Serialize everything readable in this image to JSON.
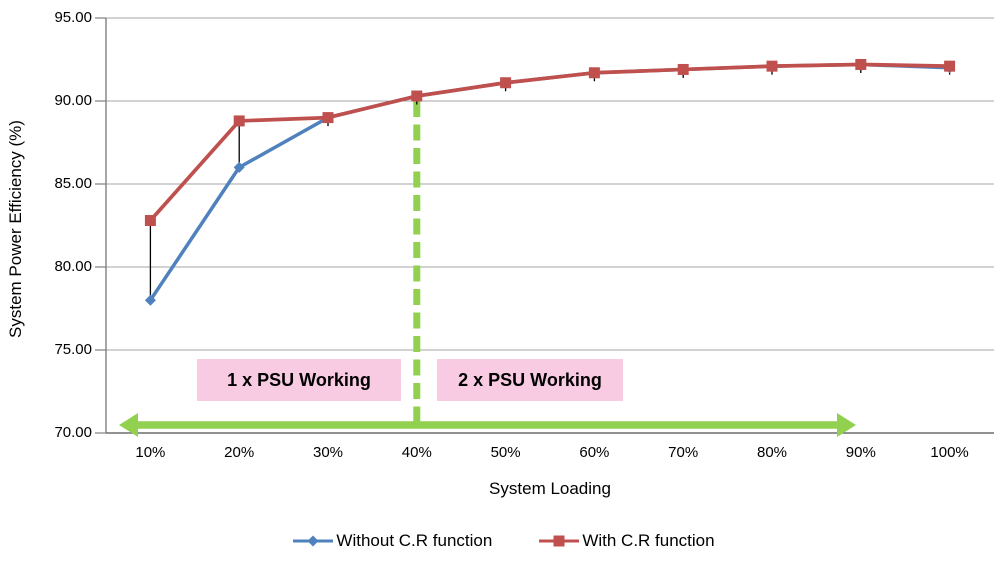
{
  "chart_data": {
    "type": "line",
    "x": [
      "10%",
      "20%",
      "30%",
      "40%",
      "50%",
      "60%",
      "70%",
      "80%",
      "90%",
      "100%"
    ],
    "series": [
      {
        "name": "Without C.R function",
        "color": "#4F81BD",
        "marker": "diamond",
        "values": [
          78.0,
          86.0,
          89.0,
          90.3,
          91.1,
          91.7,
          91.9,
          92.1,
          92.2,
          92.0
        ]
      },
      {
        "name": "With C.R function",
        "color": "#C0504D",
        "marker": "square",
        "values": [
          82.8,
          88.8,
          89.0,
          90.3,
          91.1,
          91.7,
          91.9,
          92.1,
          92.2,
          92.1
        ]
      }
    ],
    "xlabel": "System Loading",
    "ylabel": "System Power Efficiency (%)",
    "ylim": [
      70,
      95
    ],
    "yticks": [
      95,
      90,
      85,
      80,
      75,
      70
    ],
    "ytick_labels": [
      "95.00",
      "90.00",
      "85.00",
      "80.00",
      "75.00",
      "70.00"
    ],
    "grid": "horizontal-only",
    "legend_position": "bottom",
    "high_low_lines": true
  },
  "annotations": {
    "regions": [
      {
        "text": "1 x PSU Working",
        "bg": "#F8CBE2"
      },
      {
        "text": "2 x PSU Working",
        "bg": "#F8CBE2"
      }
    ],
    "phase_divider": {
      "at_x": "40%",
      "style": "dashed",
      "color": "#92D050"
    },
    "range_arrow": {
      "double_headed": true,
      "color": "#92D050",
      "spans": "10% to ~90%"
    }
  },
  "colors": {
    "gridline": "#A6A6A6",
    "axis": "#808080",
    "bottom_axis": "#6E6E6E",
    "high_low_line": "#000000",
    "accent_green": "#92D050",
    "region_pink": "#F8CBE2"
  }
}
